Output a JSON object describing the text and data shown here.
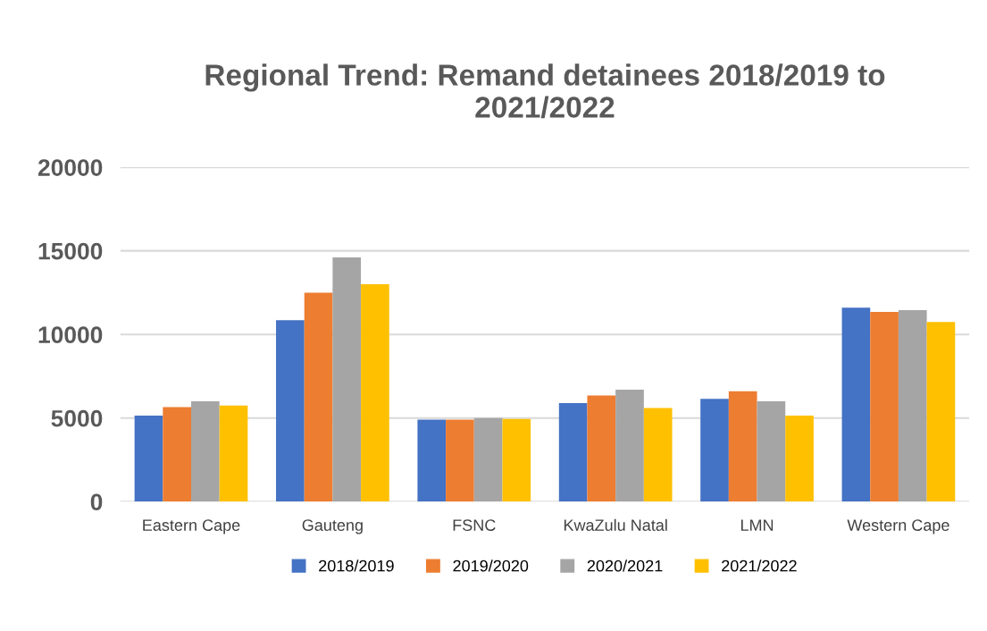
{
  "chart_data": {
    "type": "bar",
    "title": "Regional Trend: Remand detainees 2018/2019 to\n2021/2022",
    "categories": [
      "Eastern Cape",
      "Gauteng",
      "FSNC",
      "KwaZulu Natal",
      "LMN",
      "Western Cape"
    ],
    "series": [
      {
        "name": "2018/2019",
        "color": "#4472c4",
        "values": [
          5150,
          10850,
          4900,
          5900,
          6150,
          11600
        ]
      },
      {
        "name": "2019/2020",
        "color": "#ed7d31",
        "values": [
          5650,
          12500,
          4900,
          6350,
          6600,
          11350
        ]
      },
      {
        "name": "2020/2021",
        "color": "#a5a5a5",
        "values": [
          6000,
          14600,
          5000,
          6700,
          6000,
          11450
        ]
      },
      {
        "name": "2021/2022",
        "color": "#ffc000",
        "values": [
          5750,
          13000,
          4950,
          5600,
          5150,
          10750
        ]
      }
    ],
    "ylim": [
      0,
      20000
    ],
    "yticks": [
      0,
      5000,
      10000,
      15000,
      20000
    ],
    "grid": "y",
    "legend": "bottom"
  }
}
